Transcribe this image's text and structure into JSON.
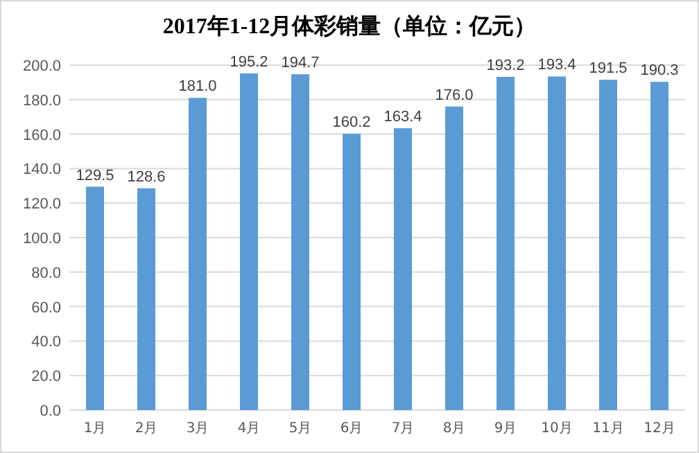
{
  "chart_data": {
    "type": "bar",
    "title": "2017年1-12月体彩销量（单位：亿元）",
    "categories": [
      "1月",
      "2月",
      "3月",
      "4月",
      "5月",
      "6月",
      "7月",
      "8月",
      "9月",
      "10月",
      "11月",
      "12月"
    ],
    "values": [
      129.5,
      128.6,
      181.0,
      195.2,
      194.7,
      160.2,
      163.4,
      176.0,
      193.2,
      193.4,
      191.5,
      190.3
    ],
    "value_labels": [
      "129.5",
      "128.6",
      "181.0",
      "195.2",
      "194.7",
      "160.2",
      "163.4",
      "176.0",
      "193.2",
      "193.4",
      "191.5",
      "190.3"
    ],
    "color": "#5b9bd5",
    "ylim": [
      0,
      200
    ],
    "yticks": [
      {
        "value": 0,
        "label": "0.0"
      },
      {
        "value": 20,
        "label": "20.0"
      },
      {
        "value": 40,
        "label": "40.0"
      },
      {
        "value": 60,
        "label": "60.0"
      },
      {
        "value": 80,
        "label": "80.0"
      },
      {
        "value": 100,
        "label": "100.0"
      },
      {
        "value": 120,
        "label": "120.0"
      },
      {
        "value": 140,
        "label": "140.0"
      },
      {
        "value": 160,
        "label": "160.0"
      },
      {
        "value": 180,
        "label": "180.0"
      },
      {
        "value": 200,
        "label": "200.0"
      }
    ],
    "grid": "y"
  }
}
